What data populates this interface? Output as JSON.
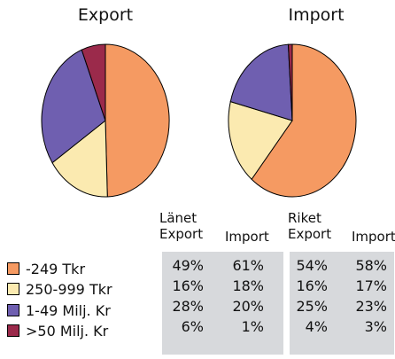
{
  "chart_data": {
    "type": "pie",
    "categories": [
      "-249 Tkr",
      "250-999 Tkr",
      "1-49 Milj. Kr",
      ">50 Milj. Kr"
    ],
    "colors": [
      "#f59a62",
      "#fbeab0",
      "#6f5fb0",
      "#9b2a4b"
    ],
    "pies": [
      {
        "title": "Export",
        "values": [
          49,
          16,
          28,
          6
        ]
      },
      {
        "title": "Import",
        "values": [
          61,
          18,
          20,
          1
        ]
      }
    ],
    "table": {
      "groups": [
        "Länet",
        "Riket"
      ],
      "columns": [
        {
          "group": "Länet",
          "label": "Export",
          "values": [
            "49%",
            "16%",
            "28%",
            "6%"
          ]
        },
        {
          "group": "",
          "label": "Import",
          "values": [
            "61%",
            "18%",
            "20%",
            "1%"
          ]
        },
        {
          "group": "Riket",
          "label": "Export",
          "values": [
            "54%",
            "16%",
            "25%",
            "4%"
          ]
        },
        {
          "group": "",
          "label": "Import",
          "values": [
            "58%",
            "17%",
            "23%",
            "3%"
          ]
        }
      ]
    }
  }
}
